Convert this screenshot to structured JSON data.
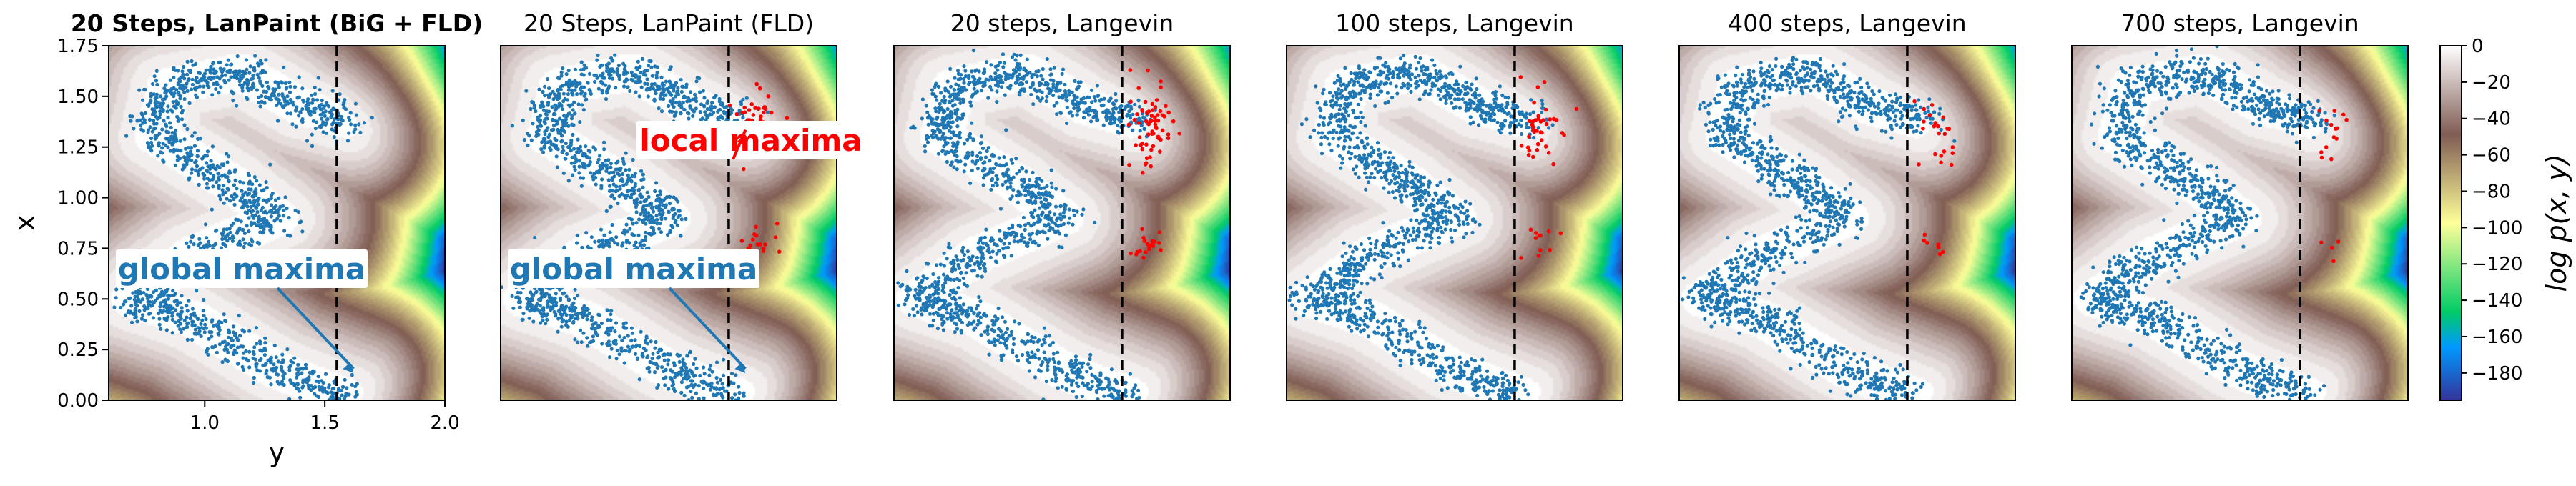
{
  "figure": {
    "colorbar_label": "log p(x, y)",
    "colorbar_ticks": [
      0,
      -20,
      -40,
      -60,
      -80,
      -100,
      -120,
      -140,
      -160,
      -180
    ],
    "colormap": "terrain",
    "colorbar_range": [
      -195,
      0
    ],
    "colors": {
      "points_main": "#1f77b4",
      "points_trapped": "#ff0000",
      "divider_line": "#000000",
      "global_annotation": "#1f77b4",
      "local_annotation": "#ff0000"
    }
  },
  "chart_data": [
    {
      "type": "scatter",
      "title": "20 Steps, LanPaint (BiG + FLD)",
      "title_bold": true,
      "xlabel": "y",
      "ylabel": "x",
      "xlim": [
        0.6,
        2.0
      ],
      "ylim": [
        0.0,
        1.75
      ],
      "xticks": [
        "1.0",
        "1.5",
        "2.0"
      ],
      "yticks": [
        "0.00",
        "0.25",
        "0.50",
        "0.75",
        "1.00",
        "1.25",
        "1.50",
        "1.75"
      ],
      "divider_y": 1.55,
      "red_points": 0,
      "annotations": [
        {
          "text": "global maxima",
          "color": "#1f77b4",
          "at": [
            1.62,
            0.12
          ]
        }
      ]
    },
    {
      "type": "scatter",
      "title": "20 Steps, LanPaint (FLD)",
      "title_bold": false,
      "xlim": [
        0.6,
        2.0
      ],
      "ylim": [
        0.0,
        1.75
      ],
      "divider_y": 1.55,
      "red_points": 70,
      "annotations": [
        {
          "text": "local maxima",
          "color": "#ff0000",
          "at": [
            1.62,
            1.3
          ]
        },
        {
          "text": "global maxima",
          "color": "#1f77b4",
          "at": [
            1.62,
            0.12
          ]
        }
      ]
    },
    {
      "type": "scatter",
      "title": "20 steps, Langevin",
      "title_bold": false,
      "xlim": [
        0.6,
        2.0
      ],
      "ylim": [
        0.0,
        1.75
      ],
      "divider_y": 1.55,
      "red_points": 85,
      "annotations": []
    },
    {
      "type": "scatter",
      "title": "100 steps, Langevin",
      "title_bold": false,
      "xlim": [
        0.6,
        2.0
      ],
      "ylim": [
        0.0,
        1.75
      ],
      "divider_y": 1.55,
      "red_points": 50,
      "annotations": []
    },
    {
      "type": "scatter",
      "title": "400 steps, Langevin",
      "title_bold": false,
      "xlim": [
        0.6,
        2.0
      ],
      "ylim": [
        0.0,
        1.75
      ],
      "divider_y": 1.55,
      "red_points": 30,
      "annotations": []
    },
    {
      "type": "scatter",
      "title": "700 steps, Langevin",
      "title_bold": false,
      "xlim": [
        0.6,
        2.0
      ],
      "ylim": [
        0.0,
        1.75
      ],
      "divider_y": 1.55,
      "red_points": 18,
      "annotations": []
    }
  ]
}
